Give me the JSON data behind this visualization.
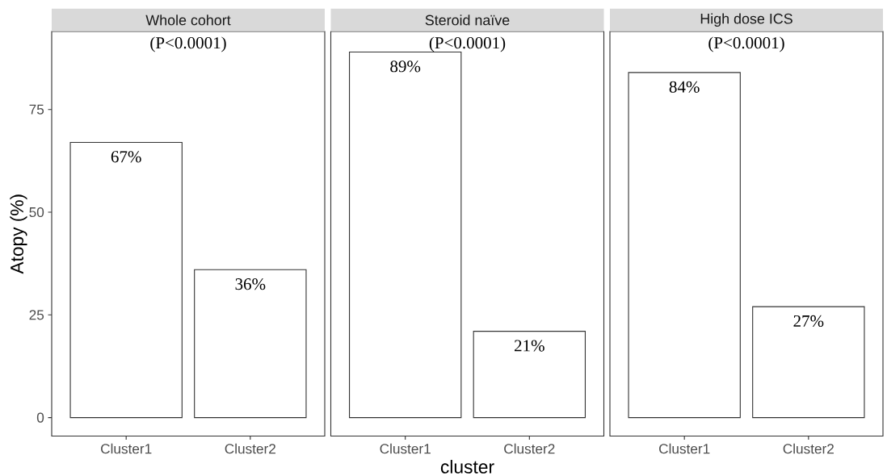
{
  "chart_data": [
    {
      "type": "bar",
      "title": "Whole cohort",
      "categories": [
        "Cluster1",
        "Cluster2"
      ],
      "values": [
        67,
        36
      ],
      "value_labels": [
        "67%",
        "36%"
      ],
      "color": "#ffffff",
      "ylabel": "Atopy (%)",
      "ylim": [
        -4.5,
        94
      ],
      "yticks": [
        0,
        25,
        50,
        75
      ],
      "annotations": [
        "(P<0.0001)"
      ]
    },
    {
      "type": "bar",
      "title": "Steroid naïve",
      "categories": [
        "Cluster1",
        "Cluster2"
      ],
      "values": [
        89,
        21
      ],
      "value_labels": [
        "89%",
        "21%"
      ],
      "color": "#ffffff",
      "xlabel": "cluster",
      "ylim": [
        -4.5,
        94
      ],
      "tick_labels": "x",
      "annotations": [
        "(P<0.0001)"
      ]
    },
    {
      "type": "bar",
      "title": "High dose ICS",
      "categories": [
        "Cluster1",
        "Cluster2"
      ],
      "values": [
        84,
        27
      ],
      "value_labels": [
        "84%",
        "27%"
      ],
      "color": "#ffffff",
      "ylim": [
        -4.5,
        94
      ],
      "tick_labels": "x",
      "annotations": [
        "(P<0.0001)"
      ]
    }
  ]
}
